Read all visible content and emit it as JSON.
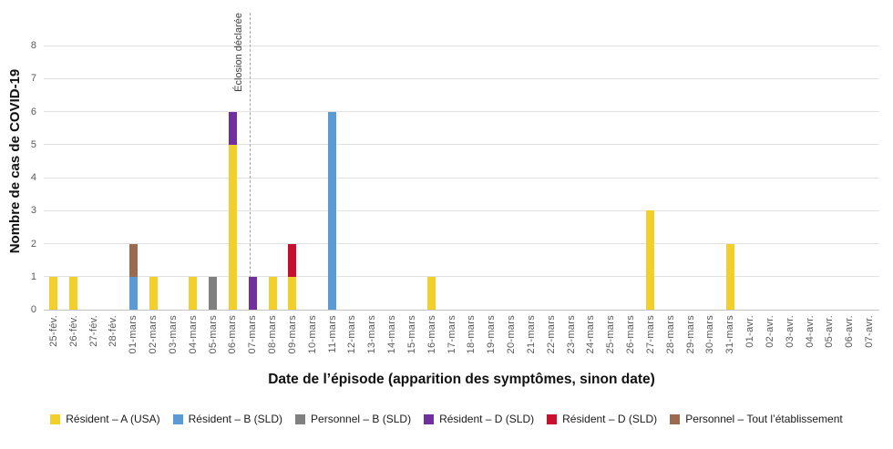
{
  "chart_data": {
    "type": "bar",
    "stacked": true,
    "title": "",
    "xlabel": "Date de l’épisode (apparition des symptômes, sinon date)",
    "ylabel": "Nombre de cas de COVID-19",
    "ylim": [
      0,
      8
    ],
    "yticks": [
      0,
      1,
      2,
      3,
      4,
      5,
      6,
      7,
      8
    ],
    "grid": true,
    "legend_position": "bottom",
    "categories": [
      "25-fév.",
      "26-fév.",
      "27-fév.",
      "28-fév.",
      "01-mars",
      "02-mars",
      "03-mars",
      "04-mars",
      "05-mars",
      "06-mars",
      "07-mars",
      "08-mars",
      "09-mars",
      "10-mars",
      "11-mars",
      "12-mars",
      "13-mars",
      "14-mars",
      "15-mars",
      "16-mars",
      "17-mars",
      "18-mars",
      "19-mars",
      "20-mars",
      "21-mars",
      "22-mars",
      "23-mars",
      "24-mars",
      "25-mars",
      "26-mars",
      "27-mars",
      "28-mars",
      "29-mars",
      "30-mars",
      "31-mars",
      "01-avr.",
      "02-avr.",
      "03-avr.",
      "04-avr.",
      "05-avr.",
      "06-avr.",
      "07-avr."
    ],
    "series": [
      {
        "name": "Résident – A (USA)",
        "color": "#F2CF2B",
        "values": [
          1,
          1,
          0,
          0,
          0,
          1,
          0,
          1,
          0,
          5,
          0,
          1,
          1,
          0,
          0,
          0,
          0,
          0,
          0,
          1,
          0,
          0,
          0,
          0,
          0,
          0,
          0,
          0,
          0,
          0,
          3,
          0,
          0,
          0,
          2,
          0,
          0,
          0,
          0,
          0,
          0,
          0
        ]
      },
      {
        "name": "Résident – B (SLD)",
        "color": "#5B9BD5",
        "values": [
          0,
          0,
          0,
          0,
          1,
          0,
          0,
          0,
          0,
          0,
          0,
          0,
          0,
          0,
          6,
          0,
          0,
          0,
          0,
          0,
          0,
          0,
          0,
          0,
          0,
          0,
          0,
          0,
          0,
          0,
          0,
          0,
          0,
          0,
          0,
          0,
          0,
          0,
          0,
          0,
          0,
          0
        ]
      },
      {
        "name": "Personnel – B (SLD)",
        "color": "#808080",
        "values": [
          0,
          0,
          0,
          0,
          0,
          0,
          0,
          0,
          1,
          0,
          0,
          0,
          0,
          0,
          0,
          0,
          0,
          0,
          0,
          0,
          0,
          0,
          0,
          0,
          0,
          0,
          0,
          0,
          0,
          0,
          0,
          0,
          0,
          0,
          0,
          0,
          0,
          0,
          0,
          0,
          0,
          0
        ]
      },
      {
        "name": "Résident – D (SLD)",
        "color": "#7030A0",
        "values": [
          0,
          0,
          0,
          0,
          0,
          0,
          0,
          0,
          0,
          1,
          1,
          0,
          0,
          0,
          0,
          0,
          0,
          0,
          0,
          0,
          0,
          0,
          0,
          0,
          0,
          0,
          0,
          0,
          0,
          0,
          0,
          0,
          0,
          0,
          0,
          0,
          0,
          0,
          0,
          0,
          0,
          0
        ]
      },
      {
        "name": "Résident – D (SLD)",
        "color": "#C8102E",
        "values": [
          0,
          0,
          0,
          0,
          0,
          0,
          0,
          0,
          0,
          0,
          0,
          0,
          1,
          0,
          0,
          0,
          0,
          0,
          0,
          0,
          0,
          0,
          0,
          0,
          0,
          0,
          0,
          0,
          0,
          0,
          0,
          0,
          0,
          0,
          0,
          0,
          0,
          0,
          0,
          0,
          0,
          0
        ]
      },
      {
        "name": "Personnel – Tout l’établissement",
        "color": "#9A6B4F",
        "values": [
          0,
          0,
          0,
          0,
          1,
          0,
          0,
          0,
          0,
          0,
          0,
          0,
          0,
          0,
          0,
          0,
          0,
          0,
          0,
          0,
          0,
          0,
          0,
          0,
          0,
          0,
          0,
          0,
          0,
          0,
          0,
          0,
          0,
          0,
          0,
          0,
          0,
          0,
          0,
          0,
          0,
          0
        ]
      }
    ],
    "annotation": {
      "label": "Éclosion déclarée",
      "category": "07-mars"
    }
  }
}
